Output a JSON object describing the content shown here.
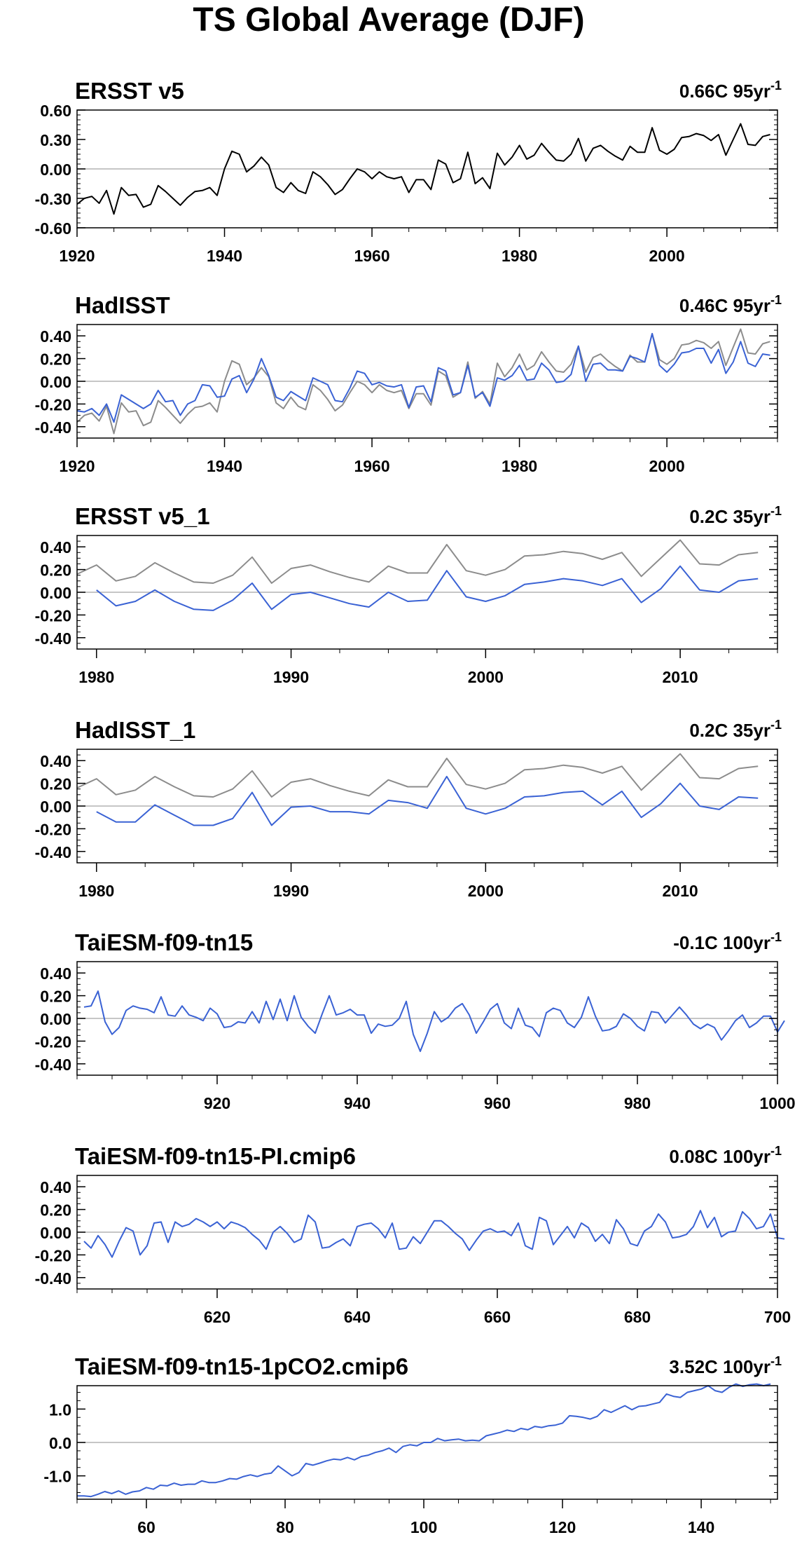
{
  "figure_title": "TS Global Average (DJF)",
  "chart_data": [
    {
      "type": "line",
      "title": "ERSST v5",
      "trend_label": "0.66C 95yr",
      "trend_sup": "-1",
      "ylim": [
        -0.6,
        0.6
      ],
      "yticks": [
        0.6,
        0.3,
        0.0,
        -0.3,
        -0.6
      ],
      "ytick_labels": [
        "0.60",
        "0.30",
        "0.00",
        "-0.30",
        "-0.60"
      ],
      "xlim": [
        1920,
        2015
      ],
      "xticks": [
        1920,
        1940,
        1960,
        1980,
        2000
      ],
      "xtick_labels": [
        "1920",
        "1940",
        "1960",
        "1980",
        "2000"
      ],
      "x_start": 1920,
      "series": [
        {
          "color": "#000000",
          "values": [
            -0.36,
            -0.3,
            -0.28,
            -0.35,
            -0.22,
            -0.46,
            -0.19,
            -0.27,
            -0.26,
            -0.39,
            -0.36,
            -0.17,
            -0.23,
            -0.3,
            -0.37,
            -0.29,
            -0.23,
            -0.22,
            -0.19,
            -0.27,
            0.0,
            0.18,
            0.15,
            -0.03,
            0.03,
            0.12,
            0.04,
            -0.19,
            -0.24,
            -0.14,
            -0.22,
            -0.25,
            -0.03,
            -0.08,
            -0.16,
            -0.26,
            -0.21,
            -0.1,
            0.0,
            -0.03,
            -0.1,
            -0.03,
            -0.08,
            -0.1,
            -0.08,
            -0.24,
            -0.11,
            -0.11,
            -0.21,
            0.09,
            0.05,
            -0.14,
            -0.1,
            0.17,
            -0.15,
            -0.09,
            -0.2,
            0.16,
            0.04,
            0.12,
            0.24,
            0.1,
            0.14,
            0.26,
            0.17,
            0.09,
            0.08,
            0.15,
            0.31,
            0.08,
            0.21,
            0.24,
            0.18,
            0.13,
            0.09,
            0.23,
            0.17,
            0.17,
            0.42,
            0.19,
            0.15,
            0.2,
            0.32,
            0.33,
            0.36,
            0.34,
            0.29,
            0.35,
            0.14,
            0.3,
            0.46,
            0.25,
            0.24,
            0.33,
            0.35
          ]
        }
      ]
    },
    {
      "type": "line",
      "title": "HadISST",
      "trend_label": "0.46C 95yr",
      "trend_sup": "-1",
      "ylim": [
        -0.5,
        0.5
      ],
      "yticks": [
        0.4,
        0.2,
        0.0,
        -0.2,
        -0.4
      ],
      "ytick_labels": [
        "0.40",
        "0.20",
        "0.00",
        "-0.20",
        "-0.40"
      ],
      "xlim": [
        1920,
        2015
      ],
      "xticks": [
        1920,
        1940,
        1960,
        1980,
        2000
      ],
      "xtick_labels": [
        "1920",
        "1940",
        "1960",
        "1980",
        "2000"
      ],
      "x_start": 1920,
      "series": [
        {
          "color": "#8c8c8c",
          "values": [
            -0.36,
            -0.3,
            -0.28,
            -0.35,
            -0.22,
            -0.46,
            -0.19,
            -0.27,
            -0.26,
            -0.39,
            -0.36,
            -0.17,
            -0.23,
            -0.3,
            -0.37,
            -0.29,
            -0.23,
            -0.22,
            -0.19,
            -0.27,
            0.0,
            0.18,
            0.15,
            -0.03,
            0.03,
            0.12,
            0.04,
            -0.19,
            -0.24,
            -0.14,
            -0.22,
            -0.25,
            -0.03,
            -0.08,
            -0.16,
            -0.26,
            -0.21,
            -0.1,
            0.0,
            -0.03,
            -0.1,
            -0.03,
            -0.08,
            -0.1,
            -0.08,
            -0.24,
            -0.11,
            -0.11,
            -0.21,
            0.09,
            0.05,
            -0.14,
            -0.1,
            0.17,
            -0.15,
            -0.09,
            -0.2,
            0.16,
            0.04,
            0.12,
            0.24,
            0.1,
            0.14,
            0.26,
            0.17,
            0.09,
            0.08,
            0.15,
            0.31,
            0.08,
            0.21,
            0.24,
            0.18,
            0.13,
            0.09,
            0.23,
            0.17,
            0.17,
            0.42,
            0.19,
            0.15,
            0.2,
            0.32,
            0.33,
            0.36,
            0.34,
            0.29,
            0.35,
            0.14,
            0.3,
            0.46,
            0.25,
            0.24,
            0.33,
            0.35
          ]
        },
        {
          "color": "#3a62d4",
          "values": [
            -0.26,
            -0.27,
            -0.24,
            -0.3,
            -0.2,
            -0.36,
            -0.12,
            -0.16,
            -0.2,
            -0.24,
            -0.2,
            -0.08,
            -0.18,
            -0.17,
            -0.3,
            -0.2,
            -0.17,
            -0.03,
            -0.04,
            -0.14,
            -0.13,
            0.02,
            0.05,
            -0.1,
            0.02,
            0.2,
            0.05,
            -0.14,
            -0.17,
            -0.09,
            -0.13,
            -0.17,
            0.03,
            0.0,
            -0.03,
            -0.17,
            -0.18,
            -0.06,
            0.09,
            0.07,
            -0.03,
            -0.01,
            -0.04,
            -0.05,
            -0.03,
            -0.23,
            -0.05,
            -0.04,
            -0.18,
            0.12,
            0.09,
            -0.12,
            -0.1,
            0.14,
            -0.14,
            -0.1,
            -0.22,
            0.03,
            0.01,
            0.05,
            0.14,
            0.01,
            0.02,
            0.16,
            0.1,
            -0.01,
            0.0,
            0.06,
            0.31,
            0.0,
            0.15,
            0.16,
            0.1,
            0.1,
            0.09,
            0.22,
            0.2,
            0.17,
            0.42,
            0.14,
            0.08,
            0.15,
            0.25,
            0.26,
            0.29,
            0.29,
            0.16,
            0.28,
            0.07,
            0.17,
            0.35,
            0.16,
            0.13,
            0.24,
            0.23
          ]
        }
      ]
    },
    {
      "type": "line",
      "title": "ERSST v5_1",
      "trend_label": "0.2C 35yr",
      "trend_sup": "-1",
      "ylim": [
        -0.5,
        0.5
      ],
      "yticks": [
        0.4,
        0.2,
        0.0,
        -0.2,
        -0.4
      ],
      "ytick_labels": [
        "0.40",
        "0.20",
        "0.00",
        "-0.20",
        "-0.40"
      ],
      "xlim": [
        1979,
        2015
      ],
      "xticks": [
        1980,
        1990,
        2000,
        2010
      ],
      "xtick_labels": [
        "1980",
        "1990",
        "2000",
        "2010"
      ],
      "x_start": 1979,
      "series": [
        {
          "color": "#8c8c8c",
          "values": [
            0.16,
            0.24,
            0.1,
            0.14,
            0.26,
            0.17,
            0.09,
            0.08,
            0.15,
            0.31,
            0.08,
            0.21,
            0.24,
            0.18,
            0.13,
            0.09,
            0.23,
            0.17,
            0.17,
            0.42,
            0.19,
            0.15,
            0.2,
            0.32,
            0.33,
            0.36,
            0.34,
            0.29,
            0.35,
            0.14,
            0.3,
            0.46,
            0.25,
            0.24,
            0.33,
            0.35
          ]
        },
        {
          "color": "#3a62d4",
          "values": [
            null,
            0.02,
            -0.12,
            -0.08,
            0.02,
            -0.08,
            -0.15,
            -0.16,
            -0.07,
            0.08,
            -0.15,
            -0.02,
            0.0,
            -0.05,
            -0.1,
            -0.13,
            0.0,
            -0.08,
            -0.07,
            0.19,
            -0.04,
            -0.08,
            -0.03,
            0.07,
            0.09,
            0.12,
            0.1,
            0.06,
            0.12,
            -0.09,
            0.03,
            0.23,
            0.02,
            0.0,
            0.1,
            0.12
          ]
        }
      ]
    },
    {
      "type": "line",
      "title": "HadISST_1",
      "trend_label": "0.2C 35yr",
      "trend_sup": "-1",
      "ylim": [
        -0.5,
        0.5
      ],
      "yticks": [
        0.4,
        0.2,
        0.0,
        -0.2,
        -0.4
      ],
      "ytick_labels": [
        "0.40",
        "0.20",
        "0.00",
        "-0.20",
        "-0.40"
      ],
      "xlim": [
        1979,
        2015
      ],
      "xticks": [
        1980,
        1990,
        2000,
        2010
      ],
      "xtick_labels": [
        "1980",
        "1990",
        "2000",
        "2010"
      ],
      "x_start": 1979,
      "series": [
        {
          "color": "#8c8c8c",
          "values": [
            0.16,
            0.24,
            0.1,
            0.14,
            0.26,
            0.17,
            0.09,
            0.08,
            0.15,
            0.31,
            0.08,
            0.21,
            0.24,
            0.18,
            0.13,
            0.09,
            0.23,
            0.17,
            0.17,
            0.42,
            0.19,
            0.15,
            0.2,
            0.32,
            0.33,
            0.36,
            0.34,
            0.29,
            0.35,
            0.14,
            0.3,
            0.46,
            0.25,
            0.24,
            0.33,
            0.35
          ]
        },
        {
          "color": "#3a62d4",
          "values": [
            null,
            -0.05,
            -0.14,
            -0.14,
            0.01,
            -0.08,
            -0.17,
            -0.17,
            -0.11,
            0.12,
            -0.17,
            -0.01,
            0.0,
            -0.05,
            -0.05,
            -0.07,
            0.05,
            0.03,
            -0.02,
            0.26,
            -0.02,
            -0.07,
            -0.02,
            0.08,
            0.09,
            0.12,
            0.13,
            0.01,
            0.13,
            -0.1,
            0.02,
            0.2,
            0.0,
            -0.03,
            0.08,
            0.07
          ]
        }
      ]
    },
    {
      "type": "line",
      "title": "TaiESM-f09-tn15",
      "trend_label": "-0.1C 100yr",
      "trend_sup": "-1",
      "ylim": [
        -0.5,
        0.5
      ],
      "yticks": [
        0.4,
        0.2,
        0.0,
        -0.2,
        -0.4
      ],
      "ytick_labels": [
        "0.40",
        "0.20",
        "0.00",
        "-0.20",
        "-0.40"
      ],
      "xlim": [
        900,
        1000
      ],
      "xticks": [
        920,
        940,
        960,
        980,
        1000
      ],
      "xtick_labels": [
        "920",
        "940",
        "960",
        "980",
        "1000"
      ],
      "x_start": 901,
      "series": [
        {
          "color": "#3a62d4",
          "values": [
            0.1,
            0.11,
            0.24,
            -0.03,
            -0.14,
            -0.08,
            0.07,
            0.11,
            0.09,
            0.08,
            0.05,
            0.19,
            0.03,
            0.02,
            0.11,
            0.03,
            0.01,
            -0.02,
            0.09,
            0.04,
            -0.08,
            -0.07,
            -0.03,
            -0.04,
            0.06,
            -0.04,
            0.15,
            -0.01,
            0.17,
            -0.02,
            0.2,
            0.01,
            -0.07,
            -0.13,
            0.04,
            0.2,
            0.03,
            0.05,
            0.08,
            0.03,
            0.03,
            -0.13,
            -0.05,
            -0.07,
            -0.06,
            0.0,
            0.15,
            -0.14,
            -0.29,
            -0.13,
            0.06,
            -0.03,
            0.01,
            0.09,
            0.13,
            0.03,
            -0.13,
            -0.03,
            0.08,
            0.13,
            -0.04,
            -0.09,
            0.09,
            -0.06,
            -0.08,
            -0.16,
            0.05,
            0.09,
            0.07,
            -0.04,
            -0.08,
            0.01,
            0.19,
            0.02,
            -0.11,
            -0.1,
            -0.07,
            0.04,
            0.0,
            -0.07,
            -0.11,
            0.06,
            0.05,
            -0.04,
            0.03,
            0.1,
            0.03,
            -0.05,
            -0.09,
            -0.05,
            -0.08,
            -0.19,
            -0.11,
            -0.02,
            0.03,
            -0.08,
            -0.04,
            0.02,
            0.02,
            -0.12,
            -0.02
          ]
        }
      ]
    },
    {
      "type": "line",
      "title": "TaiESM-f09-tn15-PI.cmip6",
      "trend_label": "0.08C 100yr",
      "trend_sup": "-1",
      "ylim": [
        -0.5,
        0.5
      ],
      "yticks": [
        0.4,
        0.2,
        0.0,
        -0.2,
        -0.4
      ],
      "ytick_labels": [
        "0.40",
        "0.20",
        "0.00",
        "-0.20",
        "-0.40"
      ],
      "xlim": [
        600,
        700
      ],
      "xticks": [
        620,
        640,
        660,
        680,
        700
      ],
      "xtick_labels": [
        "620",
        "640",
        "660",
        "680",
        "700"
      ],
      "x_start": 601,
      "series": [
        {
          "color": "#3a62d4",
          "values": [
            -0.08,
            -0.14,
            -0.03,
            -0.11,
            -0.22,
            -0.08,
            0.04,
            0.01,
            -0.2,
            -0.12,
            0.08,
            0.09,
            -0.09,
            0.09,
            0.05,
            0.07,
            0.12,
            0.09,
            0.05,
            0.09,
            0.03,
            0.09,
            0.07,
            0.04,
            -0.02,
            -0.07,
            -0.15,
            0.0,
            0.05,
            -0.01,
            -0.09,
            -0.06,
            0.15,
            0.09,
            -0.14,
            -0.13,
            -0.09,
            -0.06,
            -0.12,
            0.05,
            0.07,
            0.08,
            0.03,
            -0.05,
            0.08,
            -0.15,
            -0.14,
            -0.04,
            -0.1,
            0.0,
            0.1,
            0.1,
            0.05,
            -0.01,
            -0.06,
            -0.16,
            -0.07,
            0.01,
            0.03,
            0.0,
            0.01,
            -0.03,
            0.08,
            -0.12,
            -0.15,
            0.13,
            0.1,
            -0.11,
            -0.03,
            0.05,
            -0.05,
            0.08,
            0.04,
            -0.08,
            -0.02,
            -0.1,
            0.11,
            0.03,
            -0.1,
            -0.12,
            0.01,
            0.05,
            0.16,
            0.09,
            -0.05,
            -0.04,
            -0.02,
            0.05,
            0.19,
            0.04,
            0.13,
            -0.04,
            0.0,
            0.01,
            0.18,
            0.12,
            0.03,
            0.05,
            0.16,
            -0.05,
            -0.06
          ]
        }
      ]
    },
    {
      "type": "line",
      "title": "TaiESM-f09-tn15-1pCO2.cmip6",
      "trend_label": "3.52C 100yr",
      "trend_sup": "-1",
      "ylim": [
        -1.7,
        1.7
      ],
      "yticks": [
        1.0,
        0.0,
        -1.0
      ],
      "ytick_labels": [
        "1.0",
        "0.0",
        "-1.0"
      ],
      "xlim": [
        50,
        151
      ],
      "xticks": [
        60,
        80,
        100,
        120,
        140
      ],
      "xtick_labels": [
        "60",
        "80",
        "100",
        "120",
        "140"
      ],
      "x_start": 50,
      "series": [
        {
          "color": "#3a62d4",
          "values": [
            -1.6,
            -1.6,
            -1.62,
            -1.55,
            -1.47,
            -1.53,
            -1.45,
            -1.55,
            -1.48,
            -1.45,
            -1.35,
            -1.4,
            -1.28,
            -1.3,
            -1.22,
            -1.28,
            -1.25,
            -1.25,
            -1.15,
            -1.2,
            -1.2,
            -1.15,
            -1.08,
            -1.1,
            -1.02,
            -0.97,
            -1.02,
            -0.95,
            -0.92,
            -0.7,
            -0.85,
            -1.0,
            -0.9,
            -0.63,
            -0.68,
            -0.62,
            -0.55,
            -0.5,
            -0.52,
            -0.45,
            -0.52,
            -0.42,
            -0.38,
            -0.3,
            -0.25,
            -0.17,
            -0.3,
            -0.12,
            -0.07,
            -0.1,
            0.0,
            0.0,
            0.12,
            0.05,
            0.08,
            0.1,
            0.05,
            0.07,
            0.05,
            0.2,
            0.25,
            0.3,
            0.37,
            0.33,
            0.42,
            0.38,
            0.48,
            0.45,
            0.5,
            0.52,
            0.58,
            0.8,
            0.78,
            0.75,
            0.7,
            0.78,
            0.98,
            0.9,
            1.0,
            1.1,
            0.98,
            1.08,
            1.1,
            1.15,
            1.2,
            1.45,
            1.38,
            1.35,
            1.5,
            1.55,
            1.6,
            1.7,
            1.55,
            1.5,
            1.65,
            1.75,
            1.68,
            1.73,
            1.75,
            1.7,
            1.75
          ]
        }
      ]
    }
  ]
}
